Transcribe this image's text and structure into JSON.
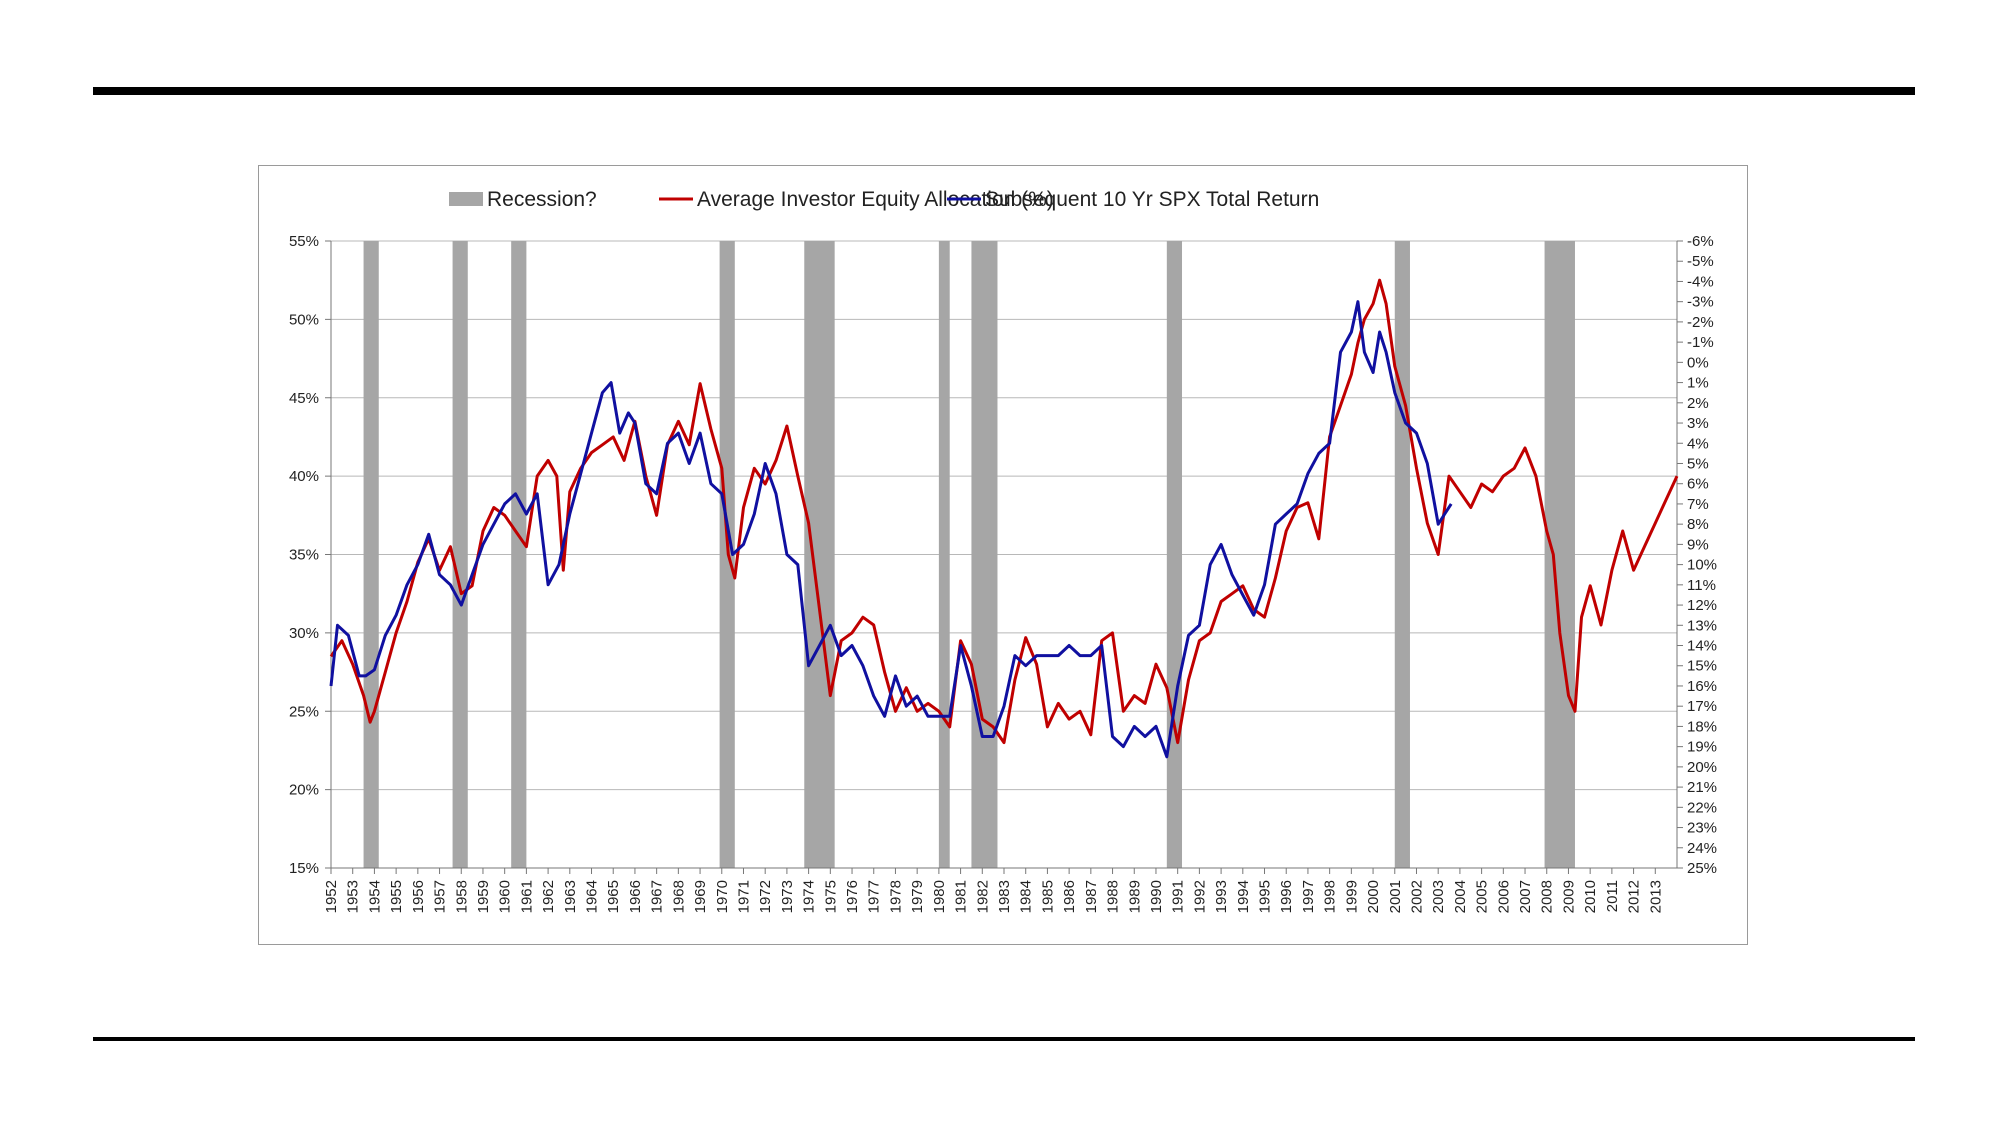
{
  "chart_data": {
    "type": "line",
    "title": "",
    "legend_position": "top",
    "grid": "horizontal",
    "legend": [
      {
        "key": "recession",
        "label": "Recession?",
        "color": "#a6a6a6",
        "kind": "bar"
      },
      {
        "key": "equity",
        "label": "Average Investor Equity Allocation (%)",
        "color": "#c00000",
        "kind": "line"
      },
      {
        "key": "spx",
        "label": "Subsequent 10 Yr SPX Total Return",
        "color": "#1010a0",
        "kind": "line"
      }
    ],
    "x_range": [
      1952,
      2014
    ],
    "x_tick_labels": [
      "1952",
      "1953",
      "1954",
      "1955",
      "1956",
      "1957",
      "1958",
      "1959",
      "1960",
      "1961",
      "1962",
      "1963",
      "1964",
      "1965",
      "1966",
      "1967",
      "1968",
      "1969",
      "1970",
      "1971",
      "1972",
      "1973",
      "1974",
      "1975",
      "1976",
      "1977",
      "1978",
      "1979",
      "1980",
      "1981",
      "1982",
      "1983",
      "1984",
      "1985",
      "1986",
      "1987",
      "1988",
      "1989",
      "1990",
      "1991",
      "1992",
      "1993",
      "1994",
      "1995",
      "1996",
      "1997",
      "1998",
      "1999",
      "2000",
      "2001",
      "2002",
      "2003",
      "2004",
      "2005",
      "2006",
      "2007",
      "2008",
      "2009",
      "2010",
      "2011",
      "2012",
      "2013"
    ],
    "y_left_range": [
      15,
      55
    ],
    "y_left_tick_labels": [
      "55%",
      "50%",
      "45%",
      "40%",
      "35%",
      "30%",
      "25%",
      "20%",
      "15%"
    ],
    "y_right_range": [
      -6,
      25
    ],
    "y_right_reversed": true,
    "y_right_tick_labels": [
      "-6%",
      "-5%",
      "-4%",
      "-3%",
      "-2%",
      "-1%",
      "0%",
      "1%",
      "2%",
      "3%",
      "4%",
      "5%",
      "6%",
      "7%",
      "8%",
      "9%",
      "10%",
      "11%",
      "12%",
      "13%",
      "14%",
      "15%",
      "16%",
      "17%",
      "18%",
      "19%",
      "20%",
      "21%",
      "22%",
      "23%",
      "24%",
      "25%"
    ],
    "recessions": [
      [
        1953.5,
        1954.2
      ],
      [
        1957.6,
        1958.3
      ],
      [
        1960.3,
        1961.0
      ],
      [
        1969.9,
        1970.6
      ],
      [
        1973.8,
        1975.2
      ],
      [
        1980.0,
        1980.5
      ],
      [
        1981.5,
        1982.7
      ],
      [
        1990.5,
        1991.2
      ],
      [
        2001.0,
        2001.7
      ],
      [
        2007.9,
        2009.3
      ]
    ],
    "series": [
      {
        "name": "Average Investor Equity Allocation (%)",
        "axis": "left",
        "x": [
          1952.0,
          1952.5,
          1953.0,
          1953.5,
          1953.8,
          1954.0,
          1954.5,
          1955.0,
          1955.5,
          1956.0,
          1956.5,
          1957.0,
          1957.5,
          1958.0,
          1958.5,
          1959.0,
          1959.5,
          1960.0,
          1960.5,
          1961.0,
          1961.5,
          1962.0,
          1962.4,
          1962.7,
          1963.0,
          1963.5,
          1964.0,
          1964.5,
          1965.0,
          1965.5,
          1966.0,
          1966.5,
          1967.0,
          1967.5,
          1968.0,
          1968.5,
          1969.0,
          1969.5,
          1970.0,
          1970.3,
          1970.6,
          1971.0,
          1971.5,
          1972.0,
          1972.5,
          1973.0,
          1973.5,
          1974.0,
          1974.5,
          1975.0,
          1975.5,
          1976.0,
          1976.5,
          1977.0,
          1977.5,
          1978.0,
          1978.5,
          1979.0,
          1979.5,
          1980.0,
          1980.5,
          1981.0,
          1981.5,
          1982.0,
          1982.5,
          1983.0,
          1983.5,
          1984.0,
          1984.5,
          1985.0,
          1985.5,
          1986.0,
          1986.5,
          1987.0,
          1987.5,
          1988.0,
          1988.5,
          1989.0,
          1989.5,
          1990.0,
          1990.5,
          1991.0,
          1991.5,
          1992.0,
          1992.5,
          1993.0,
          1993.5,
          1994.0,
          1994.5,
          1995.0,
          1995.5,
          1996.0,
          1996.5,
          1997.0,
          1997.5,
          1998.0,
          1998.5,
          1999.0,
          1999.3,
          1999.6,
          2000.0,
          2000.3,
          2000.6,
          2001.0,
          2001.5,
          2002.0,
          2002.5,
          2003.0,
          2003.5,
          2004.0,
          2004.5,
          2005.0,
          2005.5,
          2006.0,
          2006.5,
          2007.0,
          2007.5,
          2008.0,
          2008.3,
          2008.6,
          2009.0,
          2009.3,
          2009.6,
          2010.0,
          2010.5,
          2011.0,
          2011.5,
          2012.0,
          2012.5,
          2013.0,
          2013.5,
          2014.0
        ],
        "values": [
          28.5,
          29.5,
          28.0,
          26.0,
          24.3,
          25.0,
          27.5,
          30.0,
          32.0,
          34.5,
          36.0,
          34.0,
          35.5,
          32.5,
          33.0,
          36.5,
          38.0,
          37.5,
          36.5,
          35.5,
          40.0,
          41.0,
          40.0,
          34.0,
          39.0,
          40.5,
          41.5,
          42.0,
          42.5,
          41.0,
          43.5,
          40.0,
          37.5,
          42.0,
          43.5,
          42.0,
          45.9,
          43.0,
          40.5,
          35.0,
          33.5,
          38.0,
          40.5,
          39.5,
          41.0,
          43.2,
          40.0,
          37.0,
          31.5,
          26.0,
          29.5,
          30.0,
          31.0,
          30.5,
          27.5,
          25.0,
          26.5,
          25.0,
          25.5,
          25.0,
          24.0,
          29.5,
          28.0,
          24.5,
          24.0,
          23.0,
          27.0,
          29.7,
          28.0,
          24.0,
          25.5,
          24.5,
          25.0,
          23.5,
          29.5,
          30.0,
          25.0,
          26.0,
          25.5,
          28.0,
          26.5,
          23.0,
          27.0,
          29.5,
          30.0,
          32.0,
          32.5,
          33.0,
          31.5,
          31.0,
          33.5,
          36.5,
          38.0,
          38.3,
          36.0,
          42.5,
          44.5,
          46.5,
          48.5,
          50.0,
          51.0,
          52.5,
          51.0,
          47.0,
          44.5,
          40.5,
          37.0,
          35.0,
          40.0,
          39.0,
          38.0,
          39.5,
          39.0,
          40.0,
          40.5,
          41.8,
          40.0,
          36.5,
          35.0,
          30.0,
          26.0,
          25.0,
          31.0,
          33.0,
          30.5,
          34.0,
          36.5,
          34.0,
          35.5,
          37.0,
          38.5,
          40.0
        ]
      },
      {
        "name": "Subsequent 10 Yr SPX Total Return",
        "axis": "right",
        "x": [
          1952.0,
          1952.3,
          1952.8,
          1953.3,
          1953.6,
          1954.0,
          1954.5,
          1955.0,
          1955.5,
          1956.0,
          1956.5,
          1957.0,
          1957.5,
          1958.0,
          1958.5,
          1959.0,
          1959.5,
          1960.0,
          1960.5,
          1961.0,
          1961.5,
          1962.0,
          1962.5,
          1963.0,
          1963.5,
          1964.0,
          1964.5,
          1964.9,
          1965.3,
          1965.7,
          1966.0,
          1966.5,
          1967.0,
          1967.5,
          1968.0,
          1968.5,
          1969.0,
          1969.5,
          1970.0,
          1970.5,
          1971.0,
          1971.5,
          1972.0,
          1972.5,
          1973.0,
          1973.5,
          1974.0,
          1974.5,
          1975.0,
          1975.5,
          1976.0,
          1976.5,
          1977.0,
          1977.5,
          1978.0,
          1978.5,
          1979.0,
          1979.5,
          1980.0,
          1980.5,
          1981.0,
          1981.5,
          1982.0,
          1982.5,
          1983.0,
          1983.5,
          1984.0,
          1984.5,
          1985.0,
          1985.5,
          1986.0,
          1986.5,
          1987.0,
          1987.5,
          1988.0,
          1988.5,
          1989.0,
          1989.5,
          1990.0,
          1990.5,
          1991.0,
          1991.5,
          1992.0,
          1992.5,
          1993.0,
          1993.5,
          1994.0,
          1994.5,
          1995.0,
          1995.5,
          1996.0,
          1996.5,
          1997.0,
          1997.5,
          1998.0,
          1998.5,
          1999.0,
          1999.3,
          1999.6,
          2000.0,
          2000.3,
          2000.6,
          2001.0,
          2001.5,
          2002.0,
          2002.5,
          2003.0,
          2003.3,
          2003.6
        ],
        "values": [
          16.0,
          13.0,
          13.5,
          15.5,
          15.5,
          15.2,
          13.5,
          12.5,
          11.0,
          10.0,
          8.5,
          10.5,
          11.0,
          12.0,
          10.5,
          9.0,
          8.0,
          7.0,
          6.5,
          7.5,
          6.5,
          11.0,
          10.0,
          7.5,
          5.5,
          3.5,
          1.5,
          1.0,
          3.5,
          2.5,
          3.0,
          6.0,
          6.5,
          4.0,
          3.5,
          5.0,
          3.5,
          6.0,
          6.5,
          9.5,
          9.0,
          7.5,
          5.0,
          6.5,
          9.5,
          10.0,
          15.0,
          14.0,
          13.0,
          14.5,
          14.0,
          15.0,
          16.5,
          17.5,
          15.5,
          17.0,
          16.5,
          17.5,
          17.5,
          17.5,
          14.0,
          16.0,
          18.5,
          18.5,
          17.0,
          14.5,
          15.0,
          14.5,
          14.5,
          14.5,
          14.0,
          14.5,
          14.5,
          14.0,
          18.5,
          19.0,
          18.0,
          18.5,
          18.0,
          19.5,
          16.0,
          13.5,
          13.0,
          10.0,
          9.0,
          10.5,
          11.5,
          12.5,
          11.0,
          8.0,
          7.5,
          7.0,
          5.5,
          4.5,
          4.0,
          -0.5,
          -1.5,
          -3.0,
          -0.5,
          0.5,
          -1.5,
          -0.5,
          1.5,
          3.0,
          3.5,
          5.0,
          8.0,
          7.5,
          7.0
        ]
      }
    ]
  }
}
